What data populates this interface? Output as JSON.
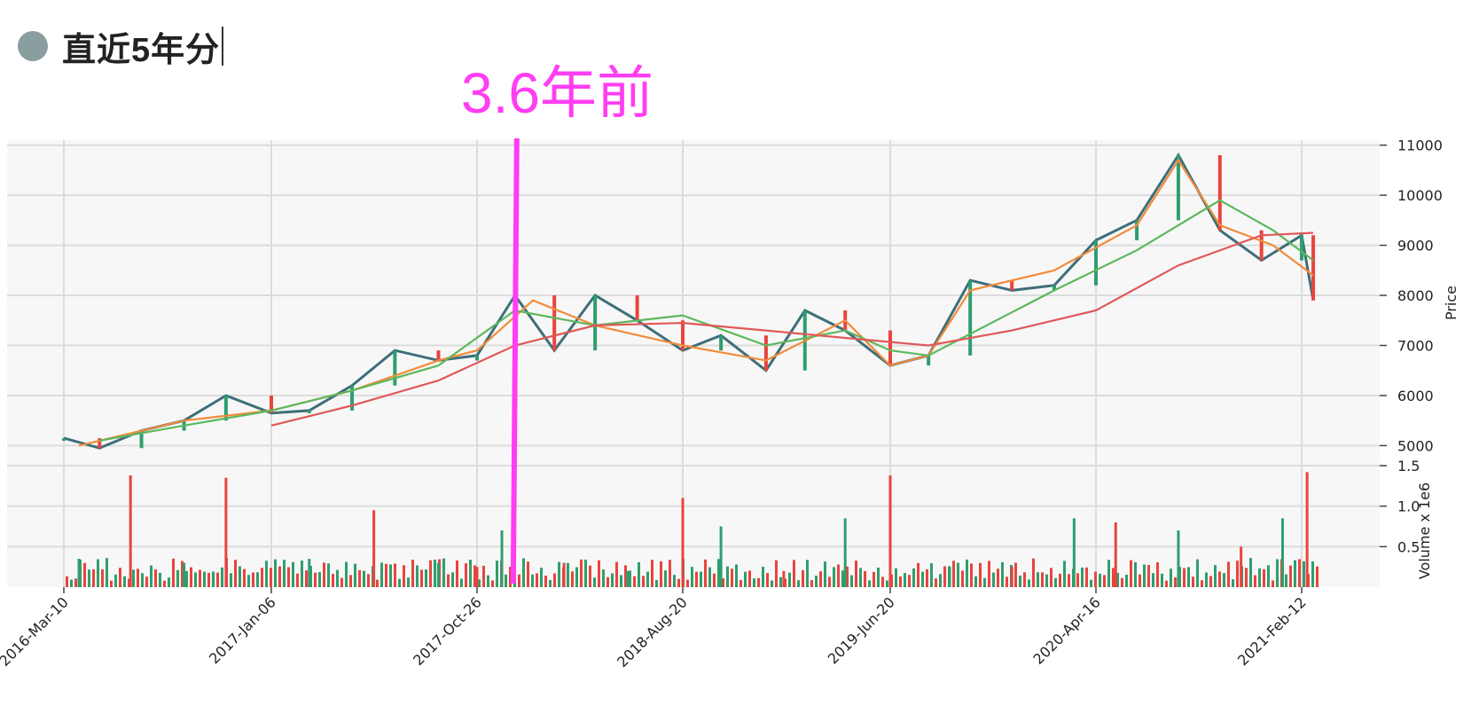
{
  "heading": {
    "text": "直近5年分",
    "bullet_color": "#8a9ea0"
  },
  "annotation": {
    "text": "3.6年前",
    "color": "#ff3df2"
  },
  "chart_data": {
    "type": "line",
    "subtype": "candlestick-with-moving-averages-and-volume",
    "x_ticks": [
      "2016-Mar-10",
      "2017-Jan-06",
      "2017-Oct-26",
      "2018-Aug-20",
      "2019-Jun-20",
      "2020-Apr-16",
      "2021-Feb-12"
    ],
    "price_axis": {
      "label": "Price",
      "ylim": [
        4600,
        11100
      ],
      "ticks": [
        5000,
        6000,
        7000,
        8000,
        9000,
        10000,
        11000
      ],
      "position": "right"
    },
    "volume_axis": {
      "label": "Volume x 1e6",
      "ylim": [
        0,
        1.5
      ],
      "ticks": [
        0.5,
        1.0,
        1.5
      ],
      "position": "right"
    },
    "grid": true,
    "x_range": [
      "2016-Mar-10",
      "2021-Mar-05"
    ],
    "marker": {
      "date": "2017-Dec-20",
      "label": "3.6年前",
      "color": "#ff3df2"
    },
    "series": [
      {
        "type": "candlestick",
        "color_up": "#2e9e6e",
        "color_down": "#e8443d",
        "x": [
          "2016-03-10",
          "2016-05-01",
          "2016-07-01",
          "2016-09-01",
          "2016-11-01",
          "2017-01-06",
          "2017-03-01",
          "2017-05-01",
          "2017-07-01",
          "2017-09-01",
          "2017-10-26",
          "2017-12-20",
          "2018-02-15",
          "2018-04-15",
          "2018-06-15",
          "2018-08-20",
          "2018-10-15",
          "2018-12-20",
          "2019-02-15",
          "2019-04-15",
          "2019-06-20",
          "2019-08-15",
          "2019-10-15",
          "2019-12-15",
          "2020-02-15",
          "2020-04-16",
          "2020-06-15",
          "2020-08-15",
          "2020-10-15",
          "2020-12-15",
          "2021-02-12",
          "2021-03-01"
        ],
        "values": [
          5150,
          4950,
          5300,
          5500,
          6000,
          5650,
          5700,
          6200,
          6900,
          6700,
          6800,
          8000,
          6900,
          8000,
          7500,
          6900,
          7200,
          6500,
          7700,
          7300,
          6600,
          6800,
          8300,
          8100,
          8200,
          9100,
          9500,
          10800,
          9300,
          8700,
          9200,
          7900
        ]
      },
      {
        "name": "",
        "type": "moving-average",
        "color": "#f28b3a",
        "x": [
          "2016-04-01",
          "2016-09-01",
          "2017-01-06",
          "2017-05-01",
          "2017-09-01",
          "2017-10-26",
          "2018-01-15",
          "2018-04-15",
          "2018-08-20",
          "2018-12-20",
          "2019-04-15",
          "2019-06-20",
          "2019-08-15",
          "2019-10-15",
          "2020-02-15",
          "2020-06-15",
          "2020-08-15",
          "2020-10-15",
          "2021-01-01",
          "2021-03-01"
        ],
        "values": [
          5000,
          5500,
          5700,
          6100,
          6700,
          6900,
          7900,
          7400,
          7000,
          6700,
          7500,
          6600,
          6800,
          8100,
          8500,
          9400,
          10700,
          9400,
          9000,
          8400
        ]
      },
      {
        "name": "",
        "type": "moving-average",
        "color": "#5cb85c",
        "x": [
          "2016-05-01",
          "2016-09-01",
          "2017-01-06",
          "2017-05-01",
          "2017-09-01",
          "2017-12-20",
          "2018-04-15",
          "2018-08-20",
          "2018-12-20",
          "2019-04-15",
          "2019-06-20",
          "2019-08-15",
          "2020-02-15",
          "2020-06-15",
          "2020-10-15",
          "2021-01-01",
          "2021-03-01"
        ],
        "values": [
          5100,
          5400,
          5700,
          6100,
          6600,
          7700,
          7400,
          7600,
          7000,
          7300,
          6900,
          6800,
          8100,
          8900,
          9900,
          9300,
          8700
        ]
      },
      {
        "name": "",
        "type": "moving-average",
        "color": "#e05858",
        "x": [
          "2017-01-06",
          "2017-05-01",
          "2017-09-01",
          "2017-12-20",
          "2018-04-15",
          "2018-08-20",
          "2018-12-20",
          "2019-04-15",
          "2019-08-15",
          "2019-12-15",
          "2020-04-16",
          "2020-08-15",
          "2020-12-15",
          "2021-03-01"
        ],
        "values": [
          5400,
          5800,
          6300,
          7000,
          7400,
          7450,
          7300,
          7150,
          7000,
          7300,
          7700,
          8600,
          9200,
          9250
        ]
      },
      {
        "type": "volume",
        "color_up": "#2e9e6e",
        "color_down": "#e8443d",
        "x": [
          "2016-04-01",
          "2016-06-15",
          "2016-09-01",
          "2016-11-01",
          "2017-03-01",
          "2017-06-01",
          "2017-09-01",
          "2017-10-26",
          "2017-12-01",
          "2018-03-01",
          "2018-06-01",
          "2018-08-20",
          "2018-10-15",
          "2019-01-15",
          "2019-04-15",
          "2019-06-20",
          "2019-09-15",
          "2019-12-15",
          "2020-03-15",
          "2020-05-15",
          "2020-08-15",
          "2020-11-15",
          "2021-01-15",
          "2021-02-20"
        ],
        "values": [
          0.35,
          1.38,
          0.3,
          1.35,
          0.35,
          0.95,
          0.3,
          0.25,
          0.7,
          0.3,
          0.2,
          1.1,
          0.75,
          0.2,
          0.85,
          1.38,
          0.25,
          0.25,
          0.85,
          0.8,
          0.7,
          0.5,
          0.85,
          1.42
        ]
      }
    ]
  }
}
